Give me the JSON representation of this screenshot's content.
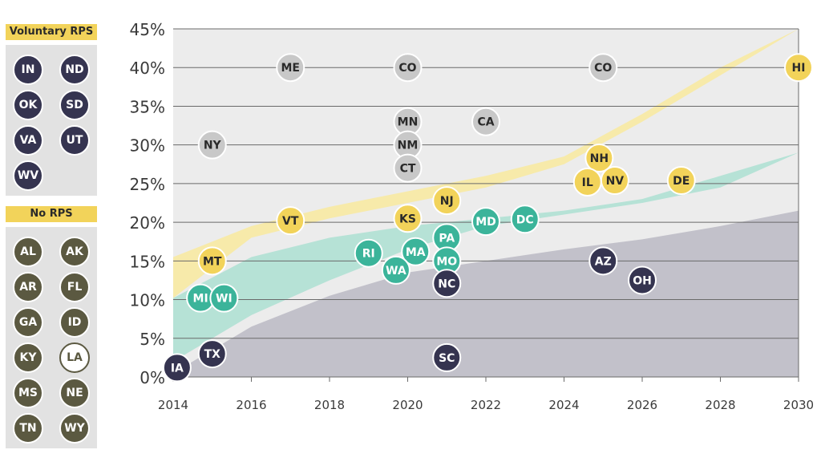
{
  "legend": {
    "voluntary": {
      "title": "Voluntary RPS",
      "states": [
        "IN",
        "ND",
        "OK",
        "SD",
        "VA",
        "UT",
        "WV"
      ],
      "color": "#353450"
    },
    "none": {
      "title": "No RPS",
      "states": [
        "AL",
        "AK",
        "AR",
        "FL",
        "GA",
        "ID",
        "KY",
        "LA",
        "MS",
        "NE",
        "TN",
        "WY"
      ],
      "color": "#5b5941",
      "outlined": [
        "LA"
      ]
    }
  },
  "colors": {
    "yellow": "#f2d35a",
    "teal": "#3bb49a",
    "dark": "#353450",
    "gray": "#c8c8c8",
    "band_yellow": "#f7eaaa",
    "band_teal": "#b6e2d6",
    "band_dark": "#c2c1ca",
    "background": "#ececec"
  },
  "chart_data": {
    "type": "scatter",
    "title": "",
    "xlabel": "",
    "ylabel": "",
    "x_ticks": [
      "2014",
      "2016",
      "2018",
      "2020",
      "2022",
      "2024",
      "2026",
      "2028",
      "2030"
    ],
    "y_ticks": [
      "0%",
      "5%",
      "10%",
      "15%",
      "20%",
      "25%",
      "30%",
      "35%",
      "40%",
      "45%"
    ],
    "xlim": [
      2014,
      2030
    ],
    "ylim": [
      0,
      45
    ],
    "grid": "horizontal",
    "bands": [
      {
        "color": "band_yellow",
        "x": [
          2014,
          2016,
          2018,
          2020,
          2022,
          2024,
          2026,
          2028,
          2030
        ],
        "lower": [
          10.2,
          18,
          20.5,
          22.5,
          24.5,
          27.5,
          33,
          39,
          45.5
        ],
        "upper": [
          15.5,
          19.5,
          22,
          24,
          26,
          28.5,
          34,
          40,
          45.5
        ]
      },
      {
        "color": "band_teal",
        "x": [
          2014,
          2016,
          2018,
          2020,
          2022,
          2024,
          2026,
          2028,
          2030
        ],
        "lower": [
          2,
          8,
          12.5,
          16.5,
          19.5,
          21,
          22.5,
          24.5,
          29
        ],
        "upper": [
          10.2,
          15.5,
          18,
          19.5,
          20.5,
          21.5,
          23,
          26,
          29
        ]
      },
      {
        "color": "band_dark",
        "x": [
          2014,
          2016,
          2018,
          2020,
          2022,
          2024,
          2026,
          2028,
          2030
        ],
        "lower": [
          0,
          0,
          0,
          0,
          0,
          0,
          0,
          0,
          0
        ],
        "upper": [
          0.5,
          6.5,
          10.5,
          13.5,
          15,
          16.5,
          17.8,
          19.5,
          21.5
        ]
      }
    ],
    "points": [
      {
        "label": "ME",
        "x": 2017,
        "y": 40,
        "color": "gray"
      },
      {
        "label": "CO",
        "x": 2020,
        "y": 40,
        "color": "gray"
      },
      {
        "label": "CO",
        "x": 2025,
        "y": 40,
        "color": "gray"
      },
      {
        "label": "HI",
        "x": 2030,
        "y": 40,
        "color": "yellow"
      },
      {
        "label": "MN",
        "x": 2020,
        "y": 33,
        "color": "gray"
      },
      {
        "label": "CA",
        "x": 2022,
        "y": 33,
        "color": "gray"
      },
      {
        "label": "NY",
        "x": 2015,
        "y": 30,
        "color": "gray"
      },
      {
        "label": "NM",
        "x": 2020,
        "y": 30,
        "color": "gray"
      },
      {
        "label": "CT",
        "x": 2020,
        "y": 27,
        "color": "gray"
      },
      {
        "label": "NH",
        "x": 2024.9,
        "y": 28.3,
        "color": "yellow"
      },
      {
        "label": "IL",
        "x": 2024.6,
        "y": 25.2,
        "color": "yellow"
      },
      {
        "label": "NV",
        "x": 2025.3,
        "y": 25.4,
        "color": "yellow"
      },
      {
        "label": "DE",
        "x": 2027,
        "y": 25.4,
        "color": "yellow"
      },
      {
        "label": "NJ",
        "x": 2021,
        "y": 22.8,
        "color": "yellow"
      },
      {
        "label": "VT",
        "x": 2017,
        "y": 20.2,
        "color": "yellow"
      },
      {
        "label": "KS",
        "x": 2020,
        "y": 20.5,
        "color": "yellow"
      },
      {
        "label": "MD",
        "x": 2022,
        "y": 20.1,
        "color": "teal"
      },
      {
        "label": "DC",
        "x": 2023,
        "y": 20.4,
        "color": "teal"
      },
      {
        "label": "PA",
        "x": 2021,
        "y": 18,
        "color": "teal"
      },
      {
        "label": "RI",
        "x": 2019,
        "y": 16,
        "color": "teal"
      },
      {
        "label": "MA",
        "x": 2020.2,
        "y": 16.2,
        "color": "teal"
      },
      {
        "label": "WA",
        "x": 2019.7,
        "y": 13.8,
        "color": "teal"
      },
      {
        "label": "MO",
        "x": 2021,
        "y": 15,
        "color": "teal"
      },
      {
        "label": "MT",
        "x": 2015,
        "y": 15,
        "color": "yellow"
      },
      {
        "label": "AZ",
        "x": 2025,
        "y": 15,
        "color": "dark"
      },
      {
        "label": "OH",
        "x": 2026,
        "y": 12.5,
        "color": "dark"
      },
      {
        "label": "NC",
        "x": 2021,
        "y": 12.1,
        "color": "dark"
      },
      {
        "label": "MI",
        "x": 2014.7,
        "y": 10.2,
        "color": "teal"
      },
      {
        "label": "WI",
        "x": 2015.3,
        "y": 10.2,
        "color": "teal"
      },
      {
        "label": "TX",
        "x": 2015,
        "y": 3,
        "color": "dark"
      },
      {
        "label": "IA",
        "x": 2014.1,
        "y": 1.2,
        "color": "dark"
      },
      {
        "label": "SC",
        "x": 2021,
        "y": 2.5,
        "color": "dark"
      }
    ]
  }
}
